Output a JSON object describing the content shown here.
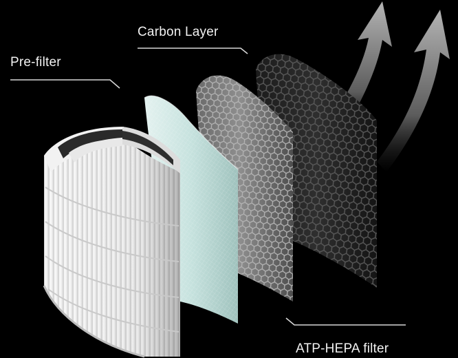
{
  "labels": {
    "pre_filter": "Pre-filter",
    "carbon_layer": "Carbon Layer",
    "hepa_filter": "ATP-HEPA filter"
  },
  "colors": {
    "background": "#000000",
    "label_text": "#f2f2f2",
    "leader_line": "#d8d8d8",
    "prefilter_sheet": "#cfe7e4",
    "hepa_body": "#f4f4f4",
    "hepa_band": "#2a2a2a",
    "carbon_mesh": "#8a8a8a",
    "dark_mesh": "#3a3a3a",
    "airflow_arrow": "#9a9a9a"
  },
  "icons": {
    "airflow": "curved-up-arrow-icon"
  }
}
